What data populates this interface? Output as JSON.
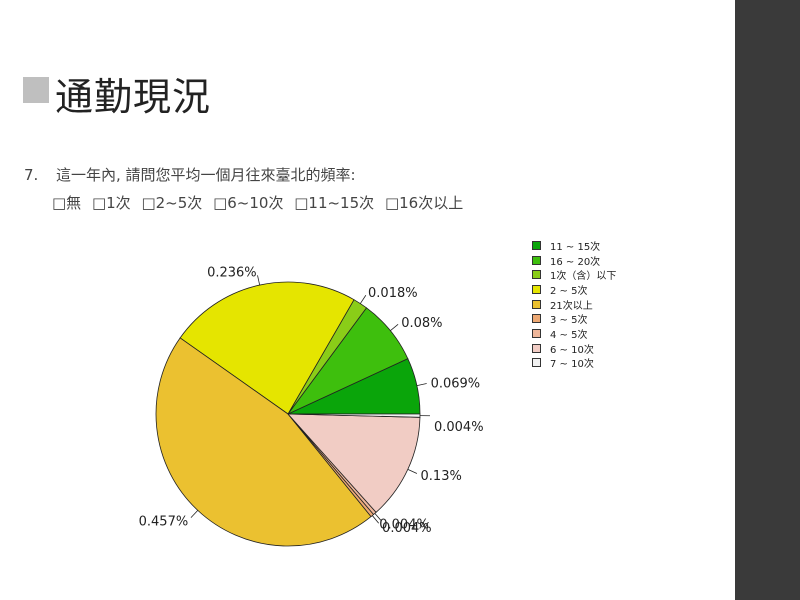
{
  "slide": {
    "title": "通勤現況",
    "question_number": "7.",
    "question_text": "這一年內, 請問您平均一個月往來臺北的頻率:",
    "options": [
      "□無",
      "□1次",
      "□2~5次",
      "□6~10次",
      "□11~15次",
      "□16次以上"
    ]
  },
  "chart_data": {
    "type": "pie",
    "categories": [
      "11 ~ 15次",
      "16 ~ 20次",
      "1次（含）以下",
      "2 ~ 5次",
      "21次以上",
      "3 ~ 5次",
      "4 ~ 5次",
      "6 ~ 10次",
      "7 ~ 10次"
    ],
    "values": [
      0.069,
      0.08,
      0.018,
      0.236,
      0.457,
      0.004,
      0.004,
      0.13,
      0.004
    ],
    "data_labels": [
      "0.069%",
      "0.08%",
      "0.018%",
      "0.236%",
      "0.457%",
      "0.004%",
      "0.004%",
      "0.13%",
      "0.004%"
    ],
    "colors": [
      "#0aa50a",
      "#3ebf0d",
      "#8acd18",
      "#e5e500",
      "#ebc130",
      "#eda873",
      "#eeb69a",
      "#f1ccc4",
      "#f2f2f2"
    ],
    "legend_placement": "right"
  }
}
